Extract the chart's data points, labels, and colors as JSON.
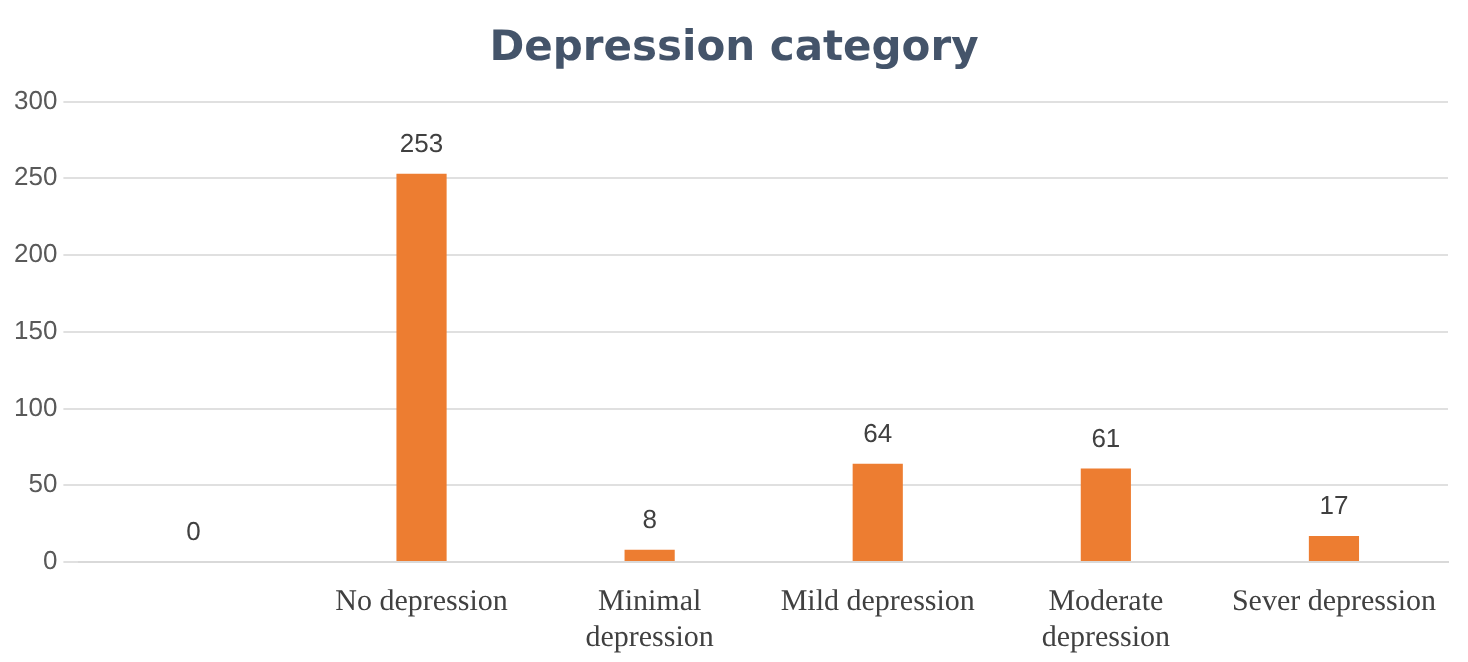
{
  "chart_data": {
    "type": "bar",
    "title": "Depression category",
    "categories": [
      null,
      "No depression",
      "Minimal depression",
      "Mild depression",
      "Moderate depression",
      "Sever depression"
    ],
    "values": [
      0,
      253,
      8,
      64,
      61,
      17
    ],
    "color": "#ed7d31",
    "ylim": [
      0,
      300
    ],
    "yticks": [
      0,
      50,
      100,
      150,
      200,
      250,
      300
    ],
    "grid": "y",
    "data_labels": true,
    "legend": false
  }
}
